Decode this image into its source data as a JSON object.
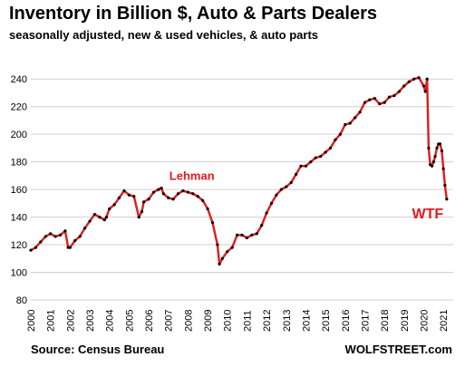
{
  "chart_data": {
    "type": "line",
    "title": "Inventory in Billion $, Auto & Parts Dealers",
    "subtitle": "seasonally adjusted, new & used vehicles, & auto parts",
    "source": "Source: Census Bureau",
    "brand": "WOLFSTREET.com",
    "xlabel": "",
    "ylabel": "",
    "ylim": [
      80,
      250
    ],
    "yticks": [
      80,
      100,
      120,
      140,
      160,
      180,
      200,
      220,
      240
    ],
    "xlim": [
      2000,
      2021.5
    ],
    "xticks": [
      "2000",
      "2001",
      "2002",
      "2003",
      "2004",
      "2005",
      "2006",
      "2007",
      "2008",
      "2009",
      "2010",
      "2011",
      "2012",
      "2013",
      "2014",
      "2015",
      "2016",
      "2017",
      "2018",
      "2019",
      "2020",
      "2021"
    ],
    "grid": "horizontal",
    "line_color": "#e31a1c",
    "marker_color": "#000000",
    "annotations": [
      {
        "text": "Lehman",
        "x": 2008.2,
        "y": 167
      },
      {
        "text": "WTF",
        "x": 2020.2,
        "y": 139
      }
    ],
    "series": [
      {
        "x": [
          2000.0,
          2000.25,
          2000.5,
          2000.75,
          2001.0,
          2001.25,
          2001.5,
          2001.75,
          2001.9,
          2002.0,
          2002.25,
          2002.5,
          2002.75,
          2003.0,
          2003.25,
          2003.5,
          2003.75,
          2003.85,
          2004.0,
          2004.25,
          2004.5,
          2004.75,
          2005.0,
          2005.25,
          2005.5,
          2005.65,
          2005.75,
          2006.0,
          2006.25,
          2006.5,
          2006.65,
          2006.75,
          2007.0,
          2007.25,
          2007.5,
          2007.75,
          2008.0,
          2008.25,
          2008.5,
          2008.75,
          2009.0,
          2009.25,
          2009.5,
          2009.6,
          2009.75,
          2010.0,
          2010.25,
          2010.5,
          2010.75,
          2011.0,
          2011.25,
          2011.5,
          2011.75,
          2012.0,
          2012.25,
          2012.5,
          2012.75,
          2013.0,
          2013.25,
          2013.5,
          2013.75,
          2014.0,
          2014.25,
          2014.5,
          2014.75,
          2015.0,
          2015.25,
          2015.5,
          2015.75,
          2016.0,
          2016.25,
          2016.5,
          2016.75,
          2017.0,
          2017.25,
          2017.5,
          2017.75,
          2018.0,
          2018.25,
          2018.5,
          2018.75,
          2019.0,
          2019.25,
          2019.5,
          2019.75,
          2020.0,
          2020.08,
          2020.17,
          2020.25,
          2020.33,
          2020.42,
          2020.5,
          2020.58,
          2020.67,
          2020.75,
          2020.83,
          2020.92,
          2021.0,
          2021.08,
          2021.17
        ],
        "values": [
          116,
          118,
          122,
          126,
          128,
          126,
          127,
          130,
          118,
          118,
          123,
          126,
          132,
          137,
          142,
          140,
          138,
          140,
          146,
          149,
          154,
          159,
          156,
          155,
          140,
          144,
          151,
          153,
          158,
          160,
          161,
          157,
          154,
          153,
          157,
          159,
          158,
          157,
          155,
          152,
          146,
          136,
          120,
          106,
          110,
          115,
          118,
          127,
          127,
          125,
          127,
          128,
          134,
          143,
          150,
          156,
          160,
          162,
          165,
          171,
          177,
          177,
          180,
          183,
          184,
          187,
          190,
          196,
          200,
          207,
          208,
          212,
          216,
          223,
          225,
          226,
          222,
          223,
          227,
          228,
          231,
          235,
          238,
          240,
          241,
          235,
          231,
          240,
          190,
          178,
          177,
          180,
          184,
          190,
          193,
          193,
          188,
          175,
          163,
          153
        ]
      }
    ]
  }
}
